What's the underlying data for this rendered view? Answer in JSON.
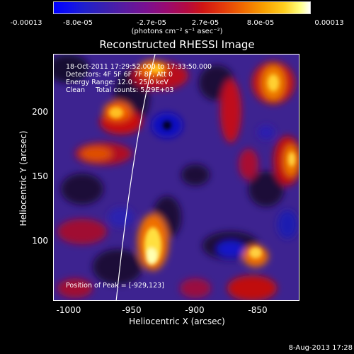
{
  "colorbar": {
    "ticks": [
      "-0.00013",
      "-8.0e-05",
      "-2.7e-05",
      "2.7e-05",
      "8.0e-05",
      "0.00013"
    ],
    "unit": "(photons cm⁻² s⁻¹ asec⁻²)"
  },
  "title": "Reconstructed RHESSI Image",
  "info": {
    "time_range": "18-Oct-2011 17:29:52.000 to 17:33:50.000",
    "detectors": "Detectors: 4F 5F 6F 7F 8F, Att 0",
    "energy": "Energy Range: 12.0 - 25.0 keV",
    "clean": "Clean     Total counts: 5.29E+03",
    "peak": "Position of Peak = [-929,123]"
  },
  "axes": {
    "xlabel": "Heliocentric X (arcsec)",
    "ylabel": "Heliocentric Y (arcsec)",
    "xticks": [
      "-1000",
      "-950",
      "-900",
      "-850"
    ],
    "yticks": [
      "100",
      "150",
      "200"
    ]
  },
  "footer_date": "8-Aug-2013 17:28"
}
